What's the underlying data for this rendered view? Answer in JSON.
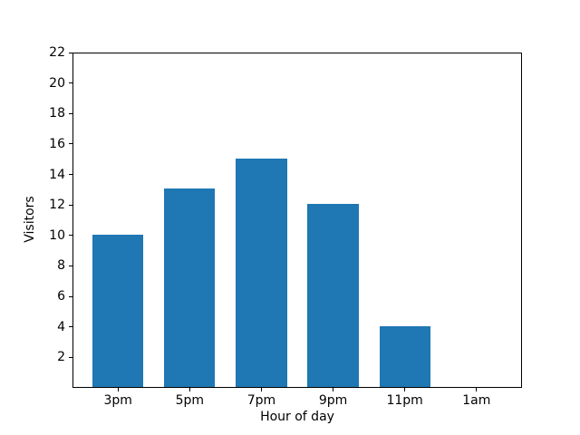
{
  "figure": {
    "background": "#ffffff",
    "frame_color": "#000000"
  },
  "chart_data": {
    "type": "bar",
    "categories": [
      "3pm",
      "5pm",
      "7pm",
      "9pm",
      "11pm",
      "1am"
    ],
    "values": [
      10,
      13,
      15,
      12,
      4,
      0
    ],
    "xlabel": "Hour of day",
    "ylabel": "Visitors",
    "ylim": [
      0,
      22
    ],
    "yticks": [
      2,
      4,
      6,
      8,
      10,
      12,
      14,
      16,
      18,
      20,
      22
    ],
    "bar_color": "#1f77b4",
    "grid": false,
    "legend": null
  }
}
